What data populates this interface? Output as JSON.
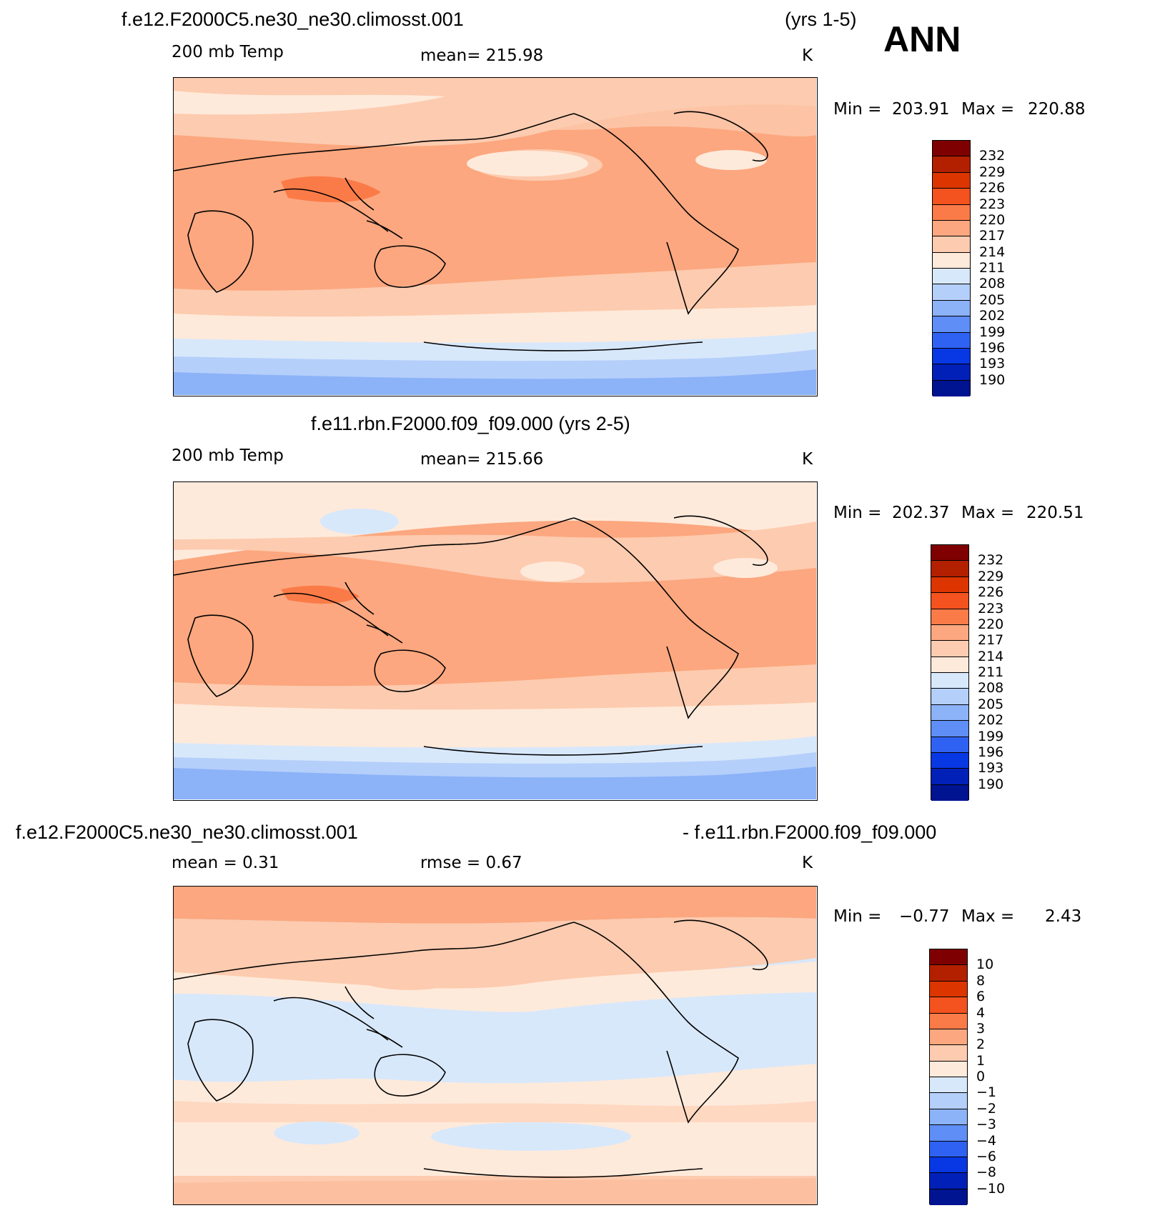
{
  "header": {
    "case1_title": "f.e12.F2000C5.ne30_ne30.climosst.001",
    "case1_years": "(yrs 1-5)",
    "season": "ANN"
  },
  "panels": [
    {
      "variable": "200 mb Temp",
      "mean_text": "mean=  215.98",
      "units": "K",
      "min_label": "Min  =",
      "min_value": "203.91",
      "max_label": "Max  =",
      "max_value": "220.88",
      "colorbar": [
        "232",
        "229",
        "226",
        "223",
        "220",
        "217",
        "214",
        "211",
        "208",
        "205",
        "202",
        "199",
        "196",
        "193",
        "190"
      ]
    },
    {
      "title": "f.e11.rbn.F2000.f09_f09.000 (yrs 2-5)",
      "variable": "200 mb Temp",
      "mean_text": "mean=  215.66",
      "units": "K",
      "min_label": "Min  =",
      "min_value": "202.37",
      "max_label": "Max  =",
      "max_value": "220.51",
      "colorbar": [
        "232",
        "229",
        "226",
        "223",
        "220",
        "217",
        "214",
        "211",
        "208",
        "205",
        "202",
        "199",
        "196",
        "193",
        "190"
      ]
    },
    {
      "title_left": "f.e12.F2000C5.ne30_ne30.climosst.001",
      "title_right": "- f.e11.rbn.F2000.f09_f09.000",
      "mean_text": "mean =     0.31",
      "rmse_text": "rmse =     0.67",
      "units": "K",
      "min_label": "Min  =",
      "min_value": "−0.77",
      "max_label": "Max  =",
      "max_value": "2.43",
      "colorbar": [
        "10",
        "8",
        "6",
        "4",
        "3",
        "2",
        "1",
        "0",
        "−1",
        "−2",
        "−3",
        "−4",
        "−6",
        "−8",
        "−10"
      ]
    }
  ],
  "colors": {
    "palette": [
      "#7f0000",
      "#b22000",
      "#dc3500",
      "#f4521e",
      "#fb7b48",
      "#fca77f",
      "#fdcbaf",
      "#feeadb",
      "#d8e8fb",
      "#b4cffa",
      "#8cb2f8",
      "#5e8ef6",
      "#2f62f2",
      "#0837e4",
      "#0020b8",
      "#001391"
    ]
  }
}
